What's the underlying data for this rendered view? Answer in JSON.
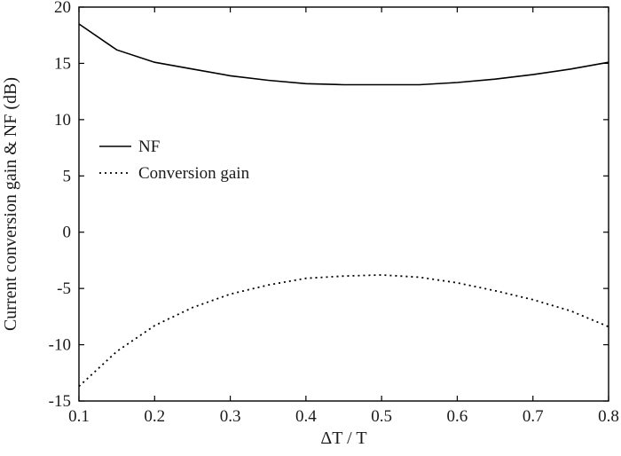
{
  "chart_data": {
    "type": "line",
    "xlabel": "ΔT / T",
    "ylabel": "Current conversion gain & NF (dB)",
    "xlim": [
      0.1,
      0.8
    ],
    "ylim": [
      -15,
      20
    ],
    "xticks": [
      "0.1",
      "0.2",
      "0.3",
      "0.4",
      "0.5",
      "0.6",
      "0.7",
      "0.8"
    ],
    "yticks": [
      "-15",
      "-10",
      "-5",
      "0",
      "5",
      "10",
      "15",
      "20"
    ],
    "grid": false,
    "legend_position": "left",
    "series": [
      {
        "name": "NF",
        "style": "solid",
        "x": [
          0.1,
          0.15,
          0.2,
          0.25,
          0.3,
          0.35,
          0.4,
          0.45,
          0.5,
          0.55,
          0.6,
          0.65,
          0.7,
          0.75,
          0.8
        ],
        "y": [
          18.5,
          16.2,
          15.1,
          14.5,
          13.9,
          13.5,
          13.2,
          13.1,
          13.1,
          13.1,
          13.3,
          13.6,
          14.0,
          14.5,
          15.1
        ]
      },
      {
        "name": "Conversion gain",
        "style": "dotted",
        "x": [
          0.1,
          0.15,
          0.2,
          0.25,
          0.3,
          0.35,
          0.4,
          0.45,
          0.5,
          0.55,
          0.6,
          0.65,
          0.7,
          0.75,
          0.8
        ],
        "y": [
          -13.7,
          -10.6,
          -8.3,
          -6.7,
          -5.5,
          -4.7,
          -4.1,
          -3.9,
          -3.8,
          -4.0,
          -4.5,
          -5.2,
          -6.0,
          -7.0,
          -8.4
        ]
      }
    ],
    "colors": {
      "line": "#000000",
      "axis": "#000000"
    }
  }
}
